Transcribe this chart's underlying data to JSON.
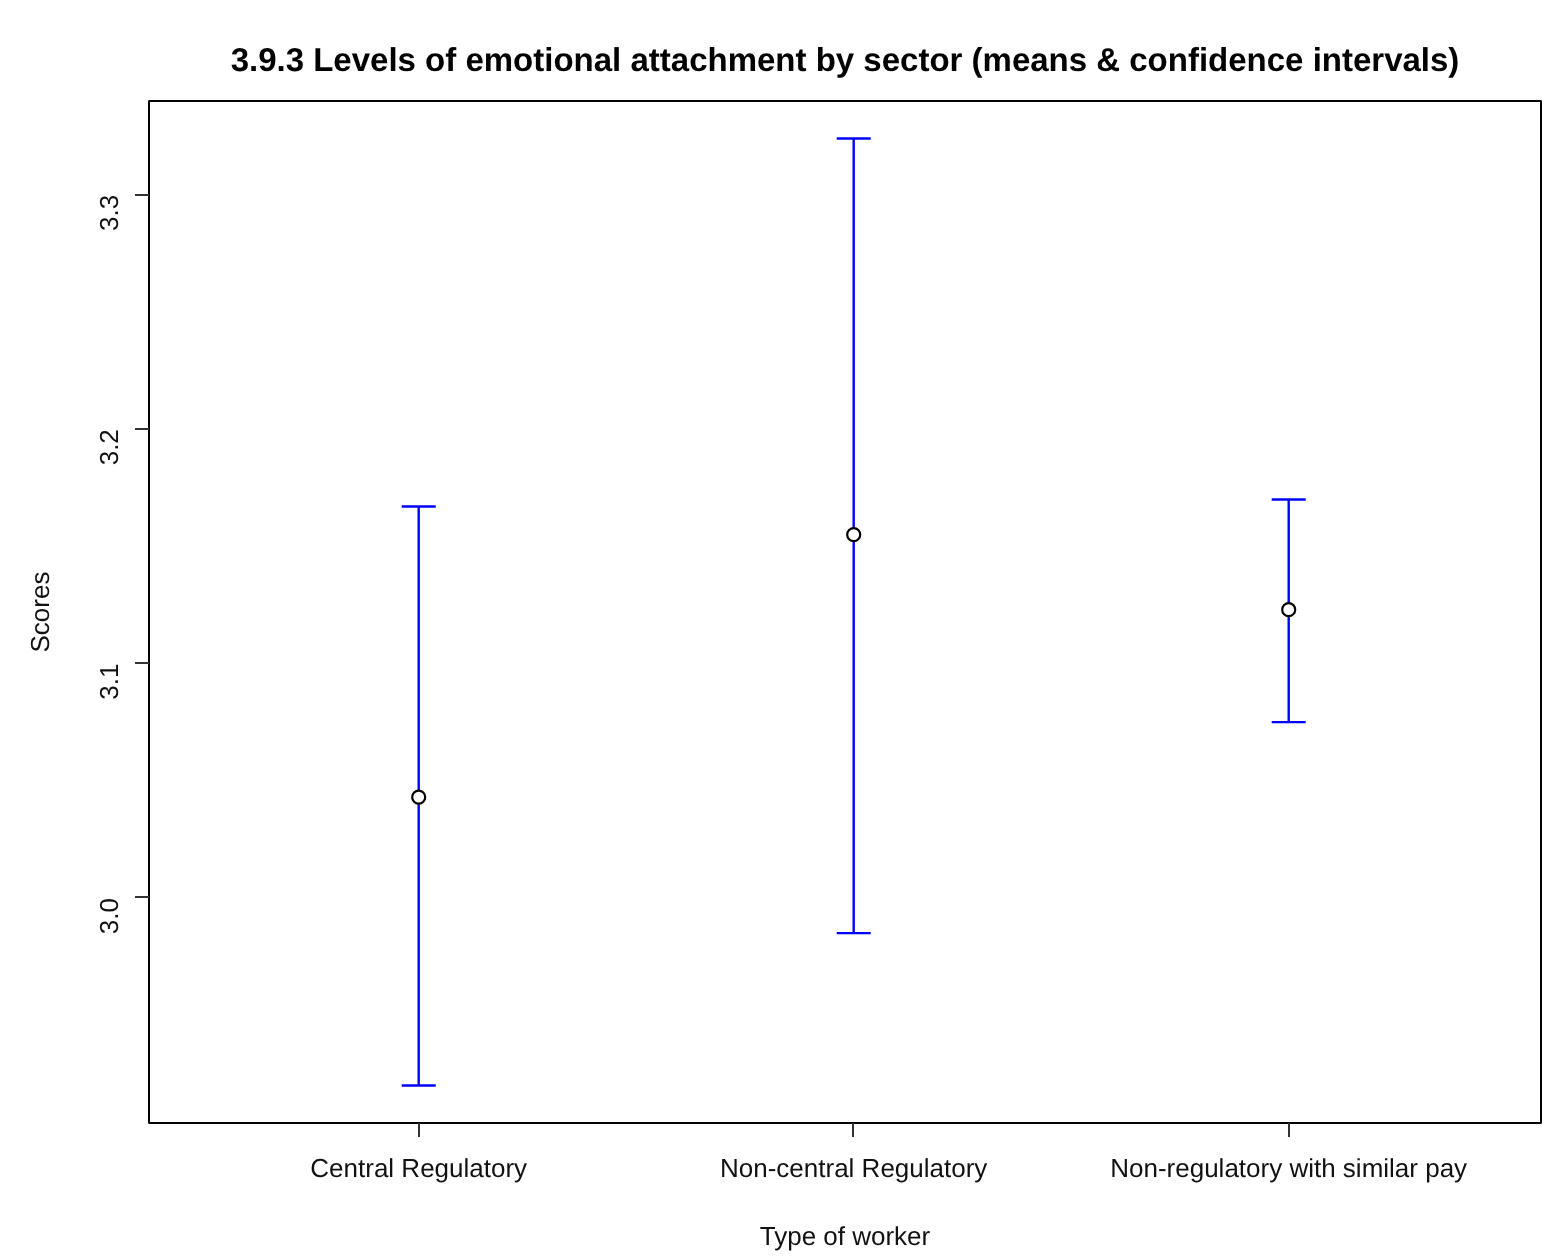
{
  "chart_data": {
    "type": "scatter",
    "title": "3.9.3 Levels of emotional attachment by sector (means & confidence intervals)",
    "xlabel": "Type of worker",
    "ylabel": "Scores",
    "categories": [
      "Central Regulatory",
      "Non-central Regulatory",
      "Non-regulatory with similar pay"
    ],
    "series": [
      {
        "color": "#000000",
        "values": [
          3.043,
          3.155,
          3.123
        ],
        "errors": [
          [
            2.92,
            3.167
          ],
          [
            2.985,
            3.324
          ],
          [
            3.075,
            3.17
          ]
        ]
      }
    ],
    "ylim": [
      2.904,
      3.34
    ],
    "yticks": [
      {
        "value": 3.0,
        "label": "3.0"
      },
      3.1,
      3.2,
      3.3
    ],
    "grid": false,
    "marker": "circle"
  }
}
